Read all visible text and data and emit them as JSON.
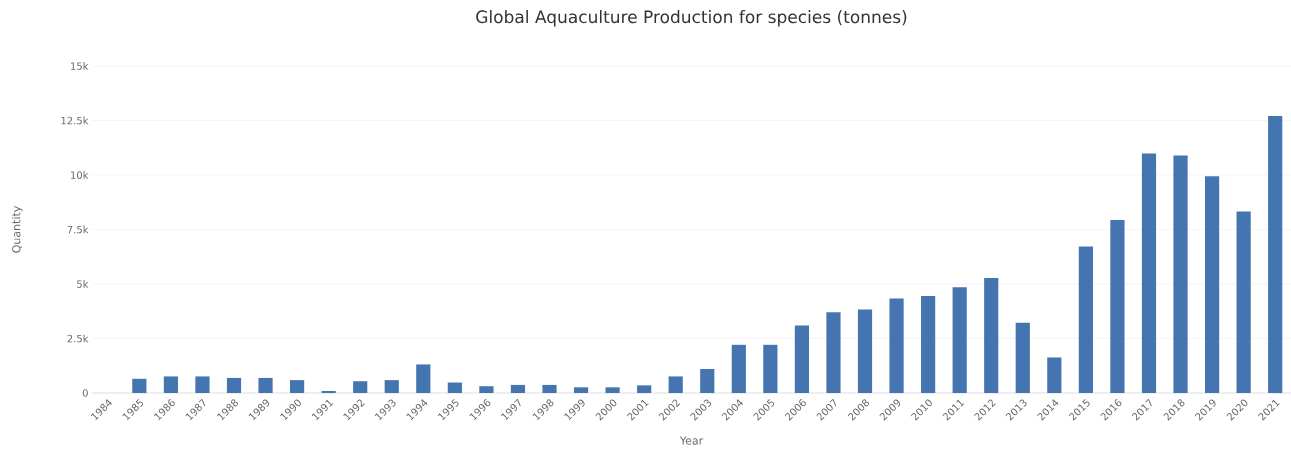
{
  "chart_data": {
    "type": "bar",
    "title": "Global Aquaculture Production for species (tonnes)",
    "xlabel": "Year",
    "ylabel": "Quantity",
    "categories": [
      "1984",
      "1985",
      "1986",
      "1987",
      "1988",
      "1989",
      "1990",
      "1991",
      "1992",
      "1993",
      "1994",
      "1995",
      "1996",
      "1997",
      "1998",
      "1999",
      "2000",
      "2001",
      "2002",
      "2003",
      "2004",
      "2005",
      "2006",
      "2007",
      "2008",
      "2009",
      "2010",
      "2011",
      "2012",
      "2013",
      "2014",
      "2015",
      "2016",
      "2017",
      "2018",
      "2019",
      "2020",
      "2021"
    ],
    "values": [
      null,
      650,
      760,
      760,
      690,
      690,
      590,
      90,
      540,
      590,
      1310,
      480,
      310,
      370,
      370,
      260,
      260,
      350,
      760,
      1100,
      2210,
      2210,
      3090,
      3700,
      3830,
      4340,
      4450,
      4850,
      5280,
      3220,
      1630,
      6720,
      7940,
      10980,
      10890,
      9940,
      8330,
      12700
    ],
    "color": "#4575b0",
    "ylim": [
      0,
      15000
    ],
    "yticks": [
      0,
      {
        "value": 2500,
        "label": "2.5k"
      },
      {
        "value": 5000,
        "label": "5k"
      },
      {
        "value": 7500,
        "label": "7.5k"
      },
      {
        "value": 10000,
        "label": "10k"
      },
      {
        "value": 12500,
        "label": "12.5k"
      },
      {
        "value": 15000,
        "label": "15k"
      }
    ],
    "grid": "y"
  }
}
